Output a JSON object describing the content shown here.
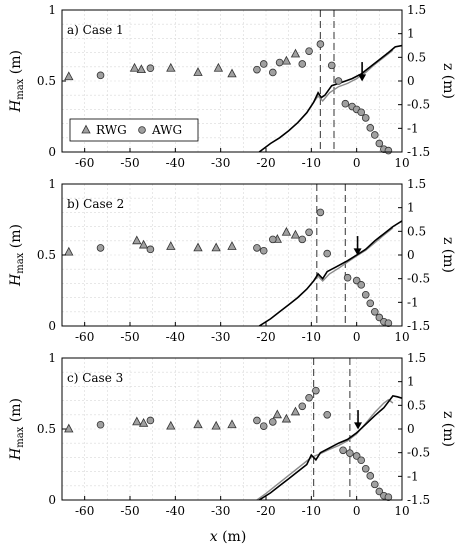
{
  "chart_data": {
    "type": "scatter",
    "xlabel": "x (m)",
    "ylabel_left": "H",
    "ylabel_left_sub": "max",
    "ylabel_left_unit": "(m)",
    "ylabel_right": "z (m)",
    "xlim": [
      -65,
      10
    ],
    "ylim_left": [
      0,
      1
    ],
    "ylim_right": [
      -1.5,
      1.5
    ],
    "xticks": [
      "-60",
      "-50",
      "-40",
      "-30",
      "-20",
      "-10",
      "0",
      "10"
    ],
    "xtick_values": [
      -60,
      -50,
      -40,
      -30,
      -20,
      -10,
      0,
      10
    ],
    "yticks_left": [
      "0",
      "0.5",
      "1"
    ],
    "ytick_left_values": [
      0,
      0.5,
      1
    ],
    "yticks_right": [
      "-1.5",
      "-1",
      "-0.5",
      "0",
      "0.5",
      "1",
      "1.5"
    ],
    "ytick_right_values": [
      -1.5,
      -1,
      -0.5,
      0,
      0.5,
      1,
      1.5
    ],
    "grid": true,
    "legend": {
      "entries": [
        "RWG",
        "AWG"
      ],
      "position": "lower-left (panel a)"
    },
    "colors": {
      "markers": "#a0a0a0",
      "profile_black": "#000000",
      "profile_gray": "#8c8c8c",
      "dashed": "#555555"
    },
    "panels": [
      {
        "title": "a) Case 1",
        "rwg": [
          [
            -63.5,
            0.53
          ],
          [
            -49,
            0.59
          ],
          [
            -47.5,
            0.58
          ],
          [
            -41,
            0.59
          ],
          [
            -35,
            0.56
          ],
          [
            -30.5,
            0.59
          ],
          [
            -27.5,
            0.55
          ],
          [
            -15.5,
            0.64
          ],
          [
            -13.5,
            0.69
          ]
        ],
        "awg": [
          [
            -56.5,
            0.54
          ],
          [
            -45.5,
            0.59
          ],
          [
            -22,
            0.58
          ],
          [
            -20.5,
            0.62
          ],
          [
            -18.5,
            0.56
          ],
          [
            -17,
            0.63
          ],
          [
            -12,
            0.62
          ],
          [
            -10.5,
            0.71
          ],
          [
            -8,
            0.76
          ],
          [
            -5.5,
            0.61
          ],
          [
            -4,
            0.5
          ],
          [
            -2.5,
            0.34
          ],
          [
            -1,
            0.32
          ],
          [
            0,
            0.3
          ],
          [
            1,
            0.28
          ],
          [
            2,
            0.24
          ],
          [
            3,
            0.17
          ],
          [
            4,
            0.12
          ],
          [
            5,
            0.06
          ],
          [
            6,
            0.02
          ],
          [
            7,
            0.01
          ]
        ],
        "bed_black": [
          [
            -21.5,
            -1.5
          ],
          [
            -19,
            -1.32
          ],
          [
            -17,
            -1.2
          ],
          [
            -15,
            -1.05
          ],
          [
            -13,
            -0.88
          ],
          [
            -11,
            -0.67
          ],
          [
            -9.5,
            -0.45
          ],
          [
            -8.5,
            -0.25
          ],
          [
            -7.8,
            -0.35
          ],
          [
            -7,
            -0.3
          ],
          [
            -5.5,
            -0.1
          ],
          [
            -3,
            -0.02
          ],
          [
            -1,
            0.05
          ],
          [
            1,
            0.15
          ],
          [
            3,
            0.3
          ],
          [
            5,
            0.45
          ],
          [
            7,
            0.6
          ],
          [
            8.5,
            0.72
          ],
          [
            10,
            0.75
          ]
        ],
        "bed_gray": [
          [
            -9.5,
            -0.45
          ],
          [
            -8.5,
            -0.32
          ],
          [
            -7.5,
            -0.42
          ],
          [
            -6,
            -0.25
          ],
          [
            -4,
            -0.12
          ],
          [
            -2,
            -0.05
          ],
          [
            0,
            0.05
          ],
          [
            2,
            0.18
          ],
          [
            4,
            0.35
          ],
          [
            6,
            0.5
          ],
          [
            8,
            0.65
          ]
        ],
        "dashed_x": [
          -8,
          -5
        ],
        "arrow_x": 1.2
      },
      {
        "title": "b) Case 2",
        "rwg": [
          [
            -63.5,
            0.52
          ],
          [
            -48.5,
            0.6
          ],
          [
            -47,
            0.57
          ],
          [
            -41,
            0.56
          ],
          [
            -35,
            0.55
          ],
          [
            -31,
            0.55
          ],
          [
            -27.5,
            0.56
          ],
          [
            -17.5,
            0.61
          ],
          [
            -15.5,
            0.66
          ],
          [
            -13.5,
            0.64
          ]
        ],
        "awg": [
          [
            -56.5,
            0.55
          ],
          [
            -45.5,
            0.54
          ],
          [
            -22,
            0.55
          ],
          [
            -20.5,
            0.53
          ],
          [
            -18.5,
            0.61
          ],
          [
            -12,
            0.61
          ],
          [
            -10.5,
            0.66
          ],
          [
            -8,
            0.8
          ],
          [
            -6.5,
            0.51
          ],
          [
            -2,
            0.34
          ],
          [
            0,
            0.32
          ],
          [
            1,
            0.29
          ],
          [
            2,
            0.22
          ],
          [
            3,
            0.16
          ],
          [
            4,
            0.1
          ],
          [
            5,
            0.06
          ],
          [
            6,
            0.03
          ],
          [
            7,
            0.02
          ]
        ],
        "bed_black": [
          [
            -21.5,
            -1.5
          ],
          [
            -19,
            -1.35
          ],
          [
            -17,
            -1.2
          ],
          [
            -15,
            -1.05
          ],
          [
            -13,
            -0.9
          ],
          [
            -11,
            -0.72
          ],
          [
            -9.5,
            -0.55
          ],
          [
            -8.5,
            -0.4
          ],
          [
            -7.5,
            -0.5
          ],
          [
            -6.5,
            -0.35
          ],
          [
            -4.5,
            -0.25
          ],
          [
            -2,
            -0.12
          ],
          [
            0,
            0
          ],
          [
            2,
            0.12
          ],
          [
            4,
            0.3
          ],
          [
            6,
            0.45
          ],
          [
            8,
            0.6
          ],
          [
            10,
            0.72
          ]
        ],
        "bed_gray": [
          [
            -9.5,
            -0.55
          ],
          [
            -8.5,
            -0.45
          ],
          [
            -7.5,
            -0.55
          ],
          [
            -6,
            -0.4
          ],
          [
            -4,
            -0.28
          ],
          [
            -2,
            -0.15
          ],
          [
            0,
            -0.02
          ],
          [
            2,
            0.1
          ],
          [
            4,
            0.26
          ],
          [
            6,
            0.42
          ],
          [
            8,
            0.57
          ]
        ],
        "dashed_x": [
          -8.8,
          -2.5
        ],
        "arrow_x": 0.2
      },
      {
        "title": "c) Case 3",
        "rwg": [
          [
            -63.5,
            0.5
          ],
          [
            -48.5,
            0.55
          ],
          [
            -47,
            0.54
          ],
          [
            -41,
            0.52
          ],
          [
            -35,
            0.53
          ],
          [
            -31,
            0.52
          ],
          [
            -27.5,
            0.53
          ],
          [
            -17.5,
            0.6
          ],
          [
            -15.5,
            0.57
          ],
          [
            -13.5,
            0.62
          ]
        ],
        "awg": [
          [
            -56.5,
            0.53
          ],
          [
            -45.5,
            0.56
          ],
          [
            -22,
            0.56
          ],
          [
            -20.5,
            0.52
          ],
          [
            -18.5,
            0.55
          ],
          [
            -12,
            0.66
          ],
          [
            -10.5,
            0.72
          ],
          [
            -9,
            0.77
          ],
          [
            -6.5,
            0.6
          ],
          [
            -3,
            0.35
          ],
          [
            -1.5,
            0.33
          ],
          [
            0,
            0.31
          ],
          [
            1,
            0.28
          ],
          [
            2,
            0.22
          ],
          [
            3,
            0.17
          ],
          [
            4,
            0.11
          ],
          [
            5,
            0.06
          ],
          [
            6,
            0.03
          ],
          [
            7,
            0.02
          ]
        ],
        "bed_black": [
          [
            -21.5,
            -1.5
          ],
          [
            -19,
            -1.35
          ],
          [
            -17,
            -1.2
          ],
          [
            -15,
            -1.05
          ],
          [
            -13,
            -0.9
          ],
          [
            -11,
            -0.75
          ],
          [
            -10,
            -0.55
          ],
          [
            -9,
            -0.65
          ],
          [
            -8,
            -0.5
          ],
          [
            -6,
            -0.4
          ],
          [
            -4,
            -0.3
          ],
          [
            -2,
            -0.22
          ],
          [
            0,
            -0.08
          ],
          [
            2,
            0.1
          ],
          [
            4,
            0.28
          ],
          [
            6,
            0.45
          ],
          [
            8,
            0.7
          ],
          [
            9,
            0.68
          ],
          [
            10,
            0.65
          ]
        ],
        "bed_gray": [
          [
            -22,
            -1.5
          ],
          [
            -20,
            -1.36
          ],
          [
            -10,
            -0.6
          ],
          [
            -8,
            -0.52
          ],
          [
            -6,
            -0.43
          ],
          [
            -4,
            -0.35
          ],
          [
            -2,
            -0.25
          ],
          [
            0,
            -0.1
          ],
          [
            2,
            0.12
          ],
          [
            4,
            0.35
          ],
          [
            6,
            0.55
          ],
          [
            7,
            0.62
          ],
          [
            8,
            0.55
          ]
        ],
        "dashed_x": [
          -9.5,
          -1.5
        ],
        "arrow_x": 0.3
      }
    ]
  }
}
